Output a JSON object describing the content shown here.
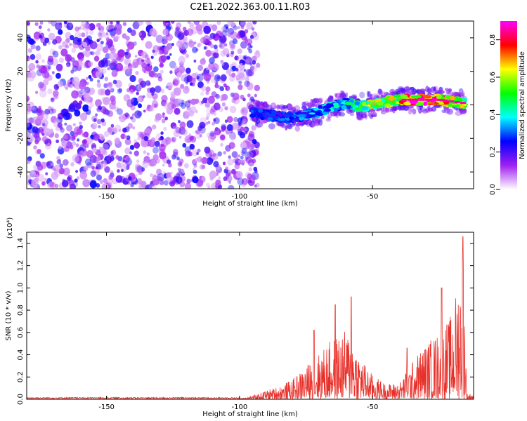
{
  "title": "C2E1.2022.363.00.11.R03",
  "chart_data": [
    {
      "type": "heatmap",
      "title": "C2E1.2022.363.00.11.R03",
      "xlabel": "Height of straight line (km)",
      "ylabel": "Frequency (Hz)",
      "xlim": [
        -180,
        -12
      ],
      "ylim": [
        -50,
        50
      ],
      "xticks": [
        -150,
        -100,
        -50
      ],
      "yticks": [
        -40,
        -20,
        0,
        20,
        40
      ],
      "noise_region_x": [
        -180,
        -93
      ],
      "signal_track": [
        {
          "x": -95,
          "y": -4,
          "amp": 0.3
        },
        {
          "x": -90,
          "y": -6,
          "amp": 0.28
        },
        {
          "x": -85,
          "y": -7,
          "amp": 0.3
        },
        {
          "x": -80,
          "y": -8,
          "amp": 0.32
        },
        {
          "x": -75,
          "y": -6,
          "amp": 0.35
        },
        {
          "x": -70,
          "y": -4,
          "amp": 0.38
        },
        {
          "x": -65,
          "y": -1,
          "amp": 0.4
        },
        {
          "x": -60,
          "y": 1,
          "amp": 0.42
        },
        {
          "x": -55,
          "y": -1,
          "amp": 0.55
        },
        {
          "x": -50,
          "y": 0,
          "amp": 0.65
        },
        {
          "x": -45,
          "y": 2,
          "amp": 0.6
        },
        {
          "x": -40,
          "y": 3,
          "amp": 0.7
        },
        {
          "x": -35,
          "y": 3,
          "amp": 0.85
        },
        {
          "x": -30,
          "y": 3,
          "amp": 0.88
        },
        {
          "x": -25,
          "y": 3,
          "amp": 0.86
        },
        {
          "x": -20,
          "y": 2,
          "amp": 0.82
        },
        {
          "x": -15,
          "y": 1,
          "amp": 0.6
        }
      ],
      "colorbar": {
        "label": "Normalized spectral amplitude",
        "range": [
          0,
          0.9
        ],
        "ticks": [
          "0.0",
          "0.2",
          "0.4",
          "0.6",
          "0.8"
        ],
        "colors": [
          "#ffffff",
          "#a020f0",
          "#0000ff",
          "#00ffff",
          "#00ff00",
          "#ffff00",
          "#ff0000",
          "#ff00ff"
        ]
      }
    },
    {
      "type": "line",
      "xlabel": "Height of straight line (km)",
      "ylabel": "SNR (10 * v/v)",
      "y_multiplier": "(x10⁴)",
      "xlim": [
        -180,
        -12
      ],
      "ylim": [
        0,
        1.5
      ],
      "xticks": [
        -150,
        -100,
        -50
      ],
      "yticks": [
        "0.0",
        "0.2",
        "0.4",
        "0.6",
        "0.8",
        "1.0",
        "1.2",
        "1.4"
      ],
      "color": "#e8302a",
      "envelope": [
        {
          "x": -180,
          "y": 0.01
        },
        {
          "x": -100,
          "y": 0.01
        },
        {
          "x": -95,
          "y": 0.03
        },
        {
          "x": -90,
          "y": 0.08
        },
        {
          "x": -85,
          "y": 0.12
        },
        {
          "x": -80,
          "y": 0.18
        },
        {
          "x": -75,
          "y": 0.3
        },
        {
          "x": -70,
          "y": 0.42
        },
        {
          "x": -65,
          "y": 0.55
        },
        {
          "x": -60,
          "y": 0.62
        },
        {
          "x": -57,
          "y": 0.55
        },
        {
          "x": -55,
          "y": 0.4
        },
        {
          "x": -50,
          "y": 0.22
        },
        {
          "x": -45,
          "y": 0.14
        },
        {
          "x": -40,
          "y": 0.15
        },
        {
          "x": -36,
          "y": 0.3
        },
        {
          "x": -32,
          "y": 0.45
        },
        {
          "x": -28,
          "y": 0.55
        },
        {
          "x": -24,
          "y": 0.62
        },
        {
          "x": -20,
          "y": 0.78
        },
        {
          "x": -17,
          "y": 1.2
        },
        {
          "x": -16,
          "y": 1.45
        },
        {
          "x": -14.5,
          "y": 0.05
        },
        {
          "x": -12,
          "y": 0.05
        }
      ],
      "peaks": [
        {
          "x": -72,
          "y": 0.62
        },
        {
          "x": -64,
          "y": 0.85
        },
        {
          "x": -58,
          "y": 0.92
        },
        {
          "x": -37,
          "y": 0.46
        },
        {
          "x": -24,
          "y": 1.0
        },
        {
          "x": -16,
          "y": 1.46
        }
      ]
    }
  ]
}
